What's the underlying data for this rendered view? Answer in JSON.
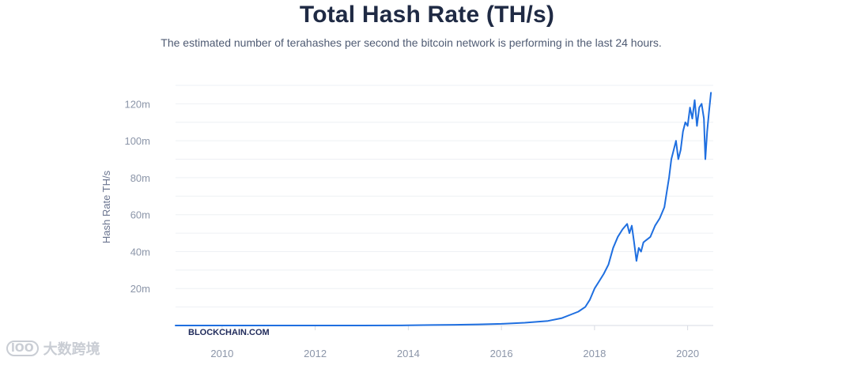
{
  "header": {
    "title": "Total Hash Rate (TH/s)",
    "subtitle": "The estimated number of terahashes per second the bitcoin network is performing in the last 24 hours."
  },
  "watermark": {
    "logo": "lOO",
    "text": "大数跨境"
  },
  "colors": {
    "line": "#1f6fe0",
    "grid": "#eef0f4",
    "title": "#1f2a44"
  },
  "chart_data": {
    "type": "line",
    "title": "Total Hash Rate (TH/s)",
    "ylabel": "Hash Rate TH/s",
    "xlabel": "",
    "brand": "BLOCKCHAIN.COM",
    "xlim": [
      2009,
      2020.55
    ],
    "ylim": [
      0,
      130
    ],
    "x_ticks": [
      2010,
      2012,
      2014,
      2016,
      2018,
      2020
    ],
    "x_tick_labels": [
      "2010",
      "2012",
      "2014",
      "2016",
      "2018",
      "2020"
    ],
    "y_ticks": [
      20,
      40,
      60,
      80,
      100,
      120
    ],
    "y_tick_labels": [
      "20m",
      "40m",
      "60m",
      "80m",
      "100m",
      "120m"
    ],
    "grid": true,
    "series": [
      {
        "x": [
          2009.0,
          2010.0,
          2011.0,
          2012.0,
          2013.0,
          2014.0,
          2014.5,
          2015.0,
          2015.5,
          2016.0,
          2016.5,
          2017.0,
          2017.3,
          2017.5,
          2017.65,
          2017.8,
          2017.9,
          2018.0,
          2018.1,
          2018.2,
          2018.3,
          2018.4,
          2018.5,
          2018.6,
          2018.7,
          2018.75,
          2018.8,
          2018.85,
          2018.9,
          2018.95,
          2019.0,
          2019.05,
          2019.1,
          2019.2,
          2019.3,
          2019.4,
          2019.5,
          2019.55,
          2019.6,
          2019.65,
          2019.7,
          2019.75,
          2019.8,
          2019.85,
          2019.9,
          2019.95,
          2020.0,
          2020.05,
          2020.1,
          2020.15,
          2020.2,
          2020.25,
          2020.3,
          2020.35,
          2020.38,
          2020.42,
          2020.46,
          2020.5
        ],
        "y": [
          0,
          0,
          0,
          0,
          0.01,
          0.1,
          0.25,
          0.4,
          0.6,
          0.9,
          1.5,
          2.5,
          4,
          6,
          7.5,
          10,
          14,
          20,
          24,
          28,
          33,
          42,
          48,
          52,
          55,
          50,
          54,
          45,
          35,
          42,
          40,
          45,
          46,
          48,
          54,
          58,
          64,
          72,
          80,
          90,
          95,
          100,
          90,
          95,
          105,
          110,
          108,
          118,
          112,
          122,
          108,
          118,
          120,
          112,
          90,
          105,
          116,
          126
        ]
      }
    ]
  }
}
